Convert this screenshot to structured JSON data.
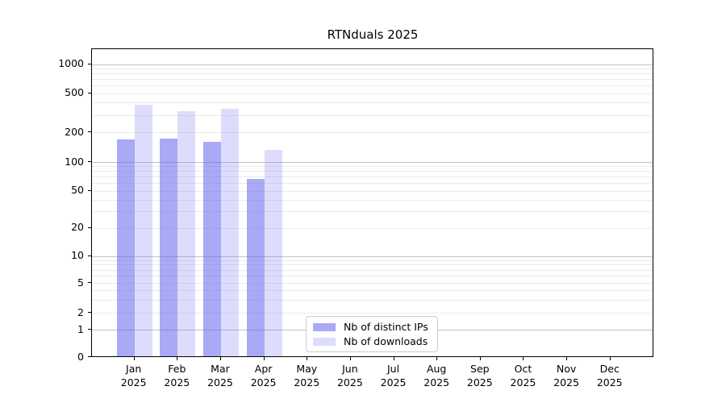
{
  "title": "RTNduals 2025",
  "legend": {
    "items": [
      {
        "label": "Nb of distinct IPs",
        "color": "rgba(98,98,238,0.55)"
      },
      {
        "label": "Nb of downloads",
        "color": "rgba(98,98,238,0.22)"
      }
    ],
    "position": "lower center"
  },
  "chart_data": {
    "type": "bar",
    "title": "RTNduals 2025",
    "categories": [
      "Jan 2025",
      "Feb 2025",
      "Mar 2025",
      "Apr 2025",
      "May 2025",
      "Jun 2025",
      "Jul 2025",
      "Aug 2025",
      "Sep 2025",
      "Oct 2025",
      "Nov 2025",
      "Dec 2025"
    ],
    "series": [
      {
        "name": "Nb of distinct IPs",
        "color": "rgba(98,98,238,0.55)",
        "values": [
          165,
          170,
          158,
          65,
          null,
          null,
          null,
          null,
          null,
          null,
          null,
          null
        ]
      },
      {
        "name": "Nb of downloads",
        "color": "rgba(98,98,238,0.22)",
        "values": [
          370,
          320,
          340,
          130,
          null,
          null,
          null,
          null,
          null,
          null,
          null,
          null
        ]
      }
    ],
    "xlabel": "",
    "ylabel": "",
    "yscale": "symlog",
    "ylim": [
      0,
      1000
    ],
    "yticks": [
      0,
      1,
      2,
      5,
      10,
      20,
      50,
      100,
      200,
      500,
      1000
    ],
    "grid": "horizontal",
    "legend_position": "lower center"
  }
}
